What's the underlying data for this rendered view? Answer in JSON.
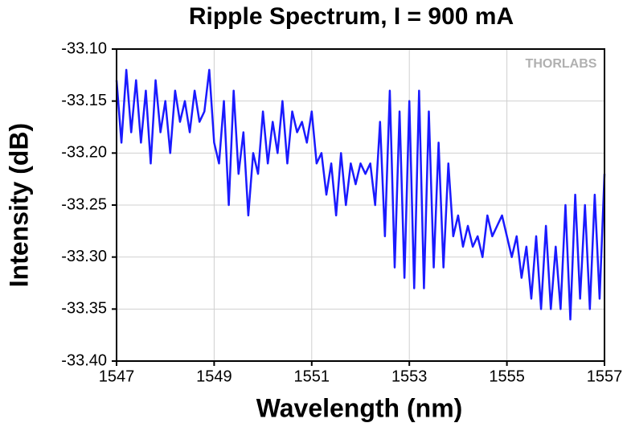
{
  "chart_data": {
    "type": "line",
    "title": "Ripple Spectrum, I = 900 mA",
    "x_label": "Wavelength (nm)",
    "y_label": "Intensity (dB)",
    "annotation": "THORLABS",
    "x": [
      1547,
      1547.1,
      1547.2,
      1547.3,
      1547.4,
      1547.5,
      1547.6,
      1547.7,
      1547.8,
      1547.9,
      1548,
      1548.1,
      1548.2,
      1548.3,
      1548.4,
      1548.5,
      1548.6,
      1548.7,
      1548.8,
      1548.9,
      1549,
      1549.1,
      1549.2,
      1549.3,
      1549.4,
      1549.5,
      1549.6,
      1549.7,
      1549.8,
      1549.9,
      1550,
      1550.1,
      1550.2,
      1550.3,
      1550.4,
      1550.5,
      1550.6,
      1550.7,
      1550.8,
      1550.9,
      1551,
      1551.1,
      1551.2,
      1551.3,
      1551.4,
      1551.5,
      1551.6,
      1551.7,
      1551.8,
      1551.9,
      1552,
      1552.1,
      1552.2,
      1552.3,
      1552.4,
      1552.5,
      1552.6,
      1552.7,
      1552.8,
      1552.9,
      1553,
      1553.1,
      1553.2,
      1553.3,
      1553.4,
      1553.5,
      1553.6,
      1553.7,
      1553.8,
      1553.9,
      1554,
      1554.1,
      1554.2,
      1554.3,
      1554.4,
      1554.5,
      1554.6,
      1554.7,
      1554.8,
      1554.9,
      1555,
      1555.1,
      1555.2,
      1555.3,
      1555.4,
      1555.5,
      1555.6,
      1555.7,
      1555.8,
      1555.9,
      1556,
      1556.1,
      1556.2,
      1556.3,
      1556.4,
      1556.5,
      1556.6,
      1556.7,
      1556.8,
      1556.9,
      1557
    ],
    "series": [
      {
        "name": "Intensity",
        "color": "#1a1aff",
        "values": [
          -33.13,
          -33.19,
          -33.12,
          -33.18,
          -33.13,
          -33.19,
          -33.14,
          -33.21,
          -33.13,
          -33.18,
          -33.15,
          -33.2,
          -33.14,
          -33.17,
          -33.15,
          -33.18,
          -33.14,
          -33.17,
          -33.16,
          -33.12,
          -33.19,
          -33.21,
          -33.15,
          -33.25,
          -33.14,
          -33.22,
          -33.18,
          -33.26,
          -33.2,
          -33.22,
          -33.16,
          -33.21,
          -33.17,
          -33.2,
          -33.15,
          -33.21,
          -33.16,
          -33.18,
          -33.17,
          -33.19,
          -33.16,
          -33.21,
          -33.2,
          -33.24,
          -33.21,
          -33.26,
          -33.2,
          -33.25,
          -33.21,
          -33.23,
          -33.21,
          -33.22,
          -33.21,
          -33.25,
          -33.17,
          -33.28,
          -33.14,
          -33.31,
          -33.16,
          -33.32,
          -33.15,
          -33.33,
          -33.14,
          -33.33,
          -33.16,
          -33.31,
          -33.19,
          -33.31,
          -33.21,
          -33.28,
          -33.26,
          -33.29,
          -33.27,
          -33.29,
          -33.28,
          -33.3,
          -33.26,
          -33.28,
          -33.27,
          -33.26,
          -33.28,
          -33.3,
          -33.28,
          -33.32,
          -33.29,
          -33.34,
          -33.28,
          -33.35,
          -33.27,
          -33.35,
          -33.29,
          -33.35,
          -33.25,
          -33.36,
          -33.24,
          -33.34,
          -33.25,
          -33.35,
          -33.24,
          -33.34,
          -33.22
        ]
      }
    ],
    "xlim": [
      1547,
      1557
    ],
    "xticks": [
      1547,
      1549,
      1551,
      1553,
      1555,
      1557
    ],
    "ylim": [
      -33.4,
      -33.1
    ],
    "yticks": [
      {
        "value": -33.1,
        "label": "-33.10"
      },
      -33.15,
      {
        "value": -33.2,
        "label": "-33.20"
      },
      -33.25,
      {
        "value": -33.3,
        "label": "-33.30"
      },
      -33.35,
      {
        "value": -33.4,
        "label": "-33.40"
      }
    ],
    "grid": true
  }
}
